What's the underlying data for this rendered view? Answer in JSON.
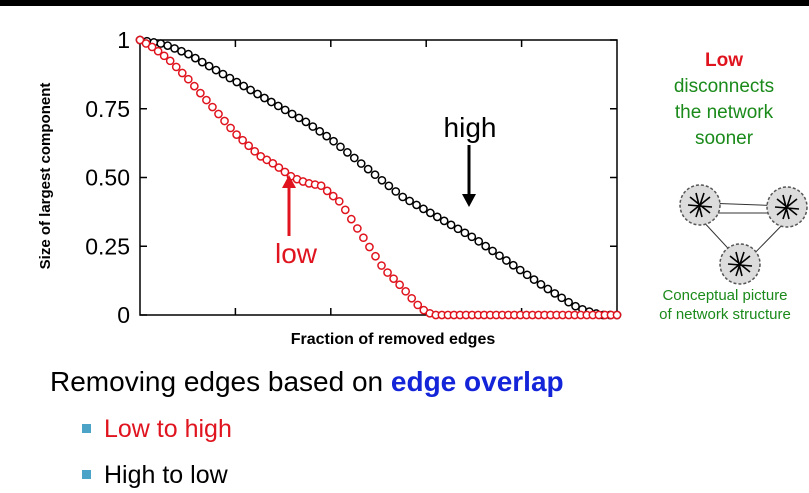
{
  "side_note": {
    "highlight": "Low",
    "lines": [
      "disconnects",
      "the network",
      "sooner"
    ]
  },
  "concept_caption": [
    "Conceptual picture",
    "of network structure"
  ],
  "headline": {
    "prefix": "Removing edges based on ",
    "keyword": "edge overlap"
  },
  "bullets": [
    "Low to high",
    "High to low"
  ],
  "colors": {
    "low": "#e0141e",
    "high": "#000000",
    "green_text": "#1a8a1a",
    "keyword": "#1424d8",
    "bullet": "#4ba3c7"
  },
  "icons": [
    "network-cluster-icon",
    "network-cluster-icon",
    "network-cluster-icon"
  ],
  "chart_data": {
    "type": "scatter",
    "xlabel": "Fraction of removed edges",
    "ylabel": "Size of largest component",
    "xlim": [
      0,
      1
    ],
    "ylim": [
      0,
      1
    ],
    "yticks": [
      0,
      0.25,
      0.5,
      0.75,
      1
    ],
    "ytick_labels": [
      "0",
      "0.25",
      "0.50",
      "0.75",
      "1"
    ],
    "grid": false,
    "series": [
      {
        "name": "high",
        "color": "#000000",
        "x": [
          0.0,
          0.05,
          0.1,
          0.15,
          0.2,
          0.25,
          0.3,
          0.35,
          0.4,
          0.45,
          0.5,
          0.55,
          0.6,
          0.65,
          0.7,
          0.75,
          0.8,
          0.85,
          0.9,
          0.92,
          0.95,
          0.97,
          1.0
        ],
        "y": [
          1.0,
          0.985,
          0.95,
          0.9,
          0.85,
          0.8,
          0.75,
          0.7,
          0.64,
          0.57,
          0.5,
          0.43,
          0.38,
          0.33,
          0.28,
          0.22,
          0.16,
          0.1,
          0.045,
          0.025,
          0.008,
          0.0,
          0.0
        ]
      },
      {
        "name": "low",
        "color": "#e0141e",
        "x": [
          0.0,
          0.03,
          0.06,
          0.1,
          0.15,
          0.2,
          0.25,
          0.28,
          0.32,
          0.35,
          0.38,
          0.42,
          0.45,
          0.48,
          0.51,
          0.55,
          0.58,
          0.6,
          0.62,
          0.64,
          0.7,
          0.8,
          0.9,
          1.0
        ],
        "y": [
          1.0,
          0.97,
          0.93,
          0.86,
          0.76,
          0.66,
          0.58,
          0.55,
          0.5,
          0.48,
          0.47,
          0.41,
          0.33,
          0.25,
          0.17,
          0.1,
          0.04,
          0.01,
          0.0,
          0.0,
          0.0,
          0.0,
          0.0,
          0.0
        ]
      }
    ],
    "annotations": [
      {
        "text": "high",
        "x": 0.72,
        "y": 0.66,
        "color": "#000000"
      },
      {
        "text": "low",
        "x": 0.33,
        "y": 0.22,
        "color": "#e0141e"
      }
    ]
  }
}
